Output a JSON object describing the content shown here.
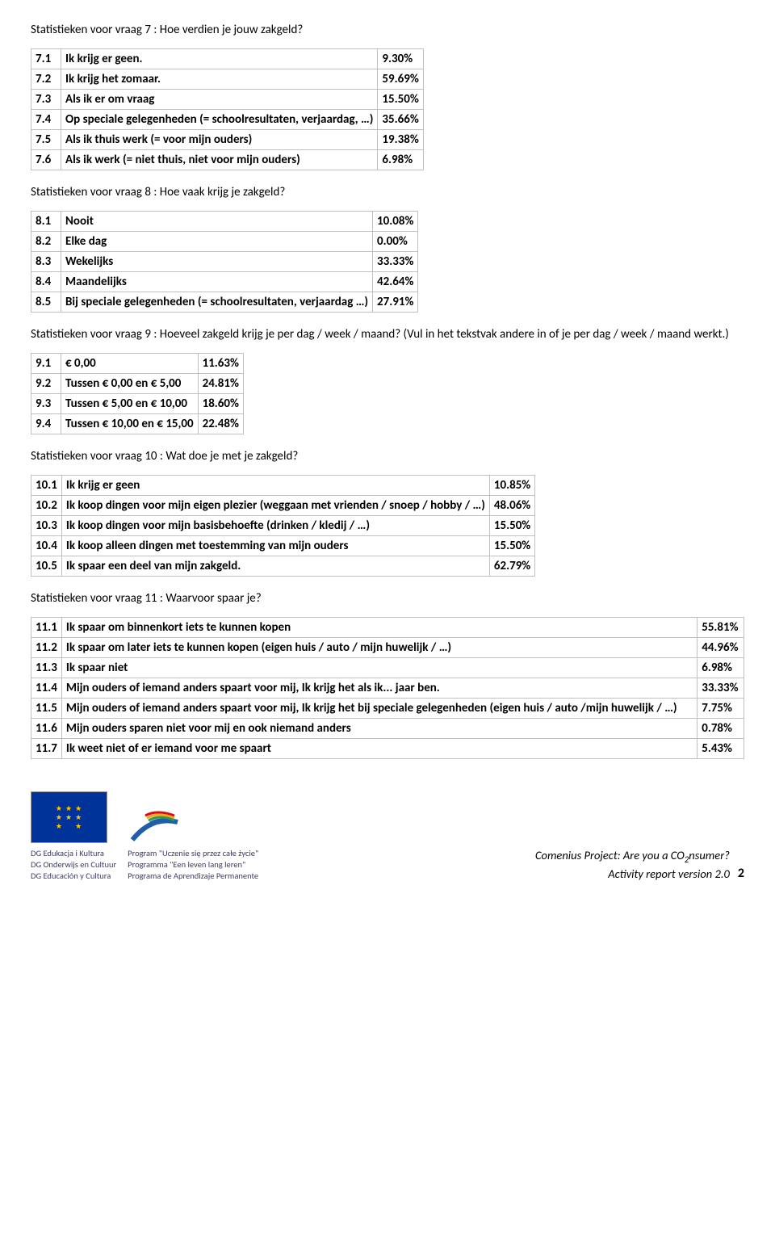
{
  "q7": {
    "title": "Statistieken voor vraag 7 : Hoe verdien je jouw zakgeld?",
    "rows": [
      {
        "id": "7.1",
        "label": "Ik krijg er geen.",
        "pct": "9.30%"
      },
      {
        "id": "7.2",
        "label": "Ik krijg het zomaar.",
        "pct": "59.69%"
      },
      {
        "id": "7.3",
        "label": "Als ik er om vraag",
        "pct": "15.50%"
      },
      {
        "id": "7.4",
        "label": "Op speciale gelegenheden (= schoolresultaten, verjaardag, …)",
        "pct": "35.66%"
      },
      {
        "id": "7.5",
        "label": "Als ik thuis werk (= voor mijn ouders)",
        "pct": "19.38%"
      },
      {
        "id": "7.6",
        "label": "Als ik werk (= niet thuis, niet voor mijn ouders)",
        "pct": "6.98%"
      }
    ]
  },
  "q8": {
    "title": "Statistieken voor vraag 8 : Hoe vaak krijg je zakgeld?",
    "rows": [
      {
        "id": "8.1",
        "label": "Nooit",
        "pct": "10.08%"
      },
      {
        "id": "8.2",
        "label": "Elke dag",
        "pct": "0.00%"
      },
      {
        "id": "8.3",
        "label": "Wekelijks",
        "pct": "33.33%"
      },
      {
        "id": "8.4",
        "label": "Maandelijks",
        "pct": "42.64%"
      },
      {
        "id": "8.5",
        "label": "Bij speciale gelegenheden (= schoolresultaten, verjaardag …)",
        "pct": "27.91%"
      }
    ]
  },
  "q9": {
    "title": "Statistieken voor vraag 9 : Hoeveel zakgeld krijg je per dag / week / maand? (Vul in het tekstvak andere in of je per dag / week / maand werkt.)",
    "rows": [
      {
        "id": "9.1",
        "label": "€ 0,00",
        "pct": "11.63%"
      },
      {
        "id": "9.2",
        "label": "Tussen € 0,00 en € 5,00",
        "pct": "24.81%"
      },
      {
        "id": "9.3",
        "label": "Tussen € 5,00 en € 10,00",
        "pct": "18.60%"
      },
      {
        "id": "9.4",
        "label": "Tussen € 10,00 en € 15,00",
        "pct": "22.48%"
      }
    ]
  },
  "q10": {
    "title": "Statistieken voor vraag 10 : Wat doe je met je zakgeld?",
    "rows": [
      {
        "id": "10.1",
        "label": "Ik krijg er geen",
        "pct": "10.85%"
      },
      {
        "id": "10.2",
        "label": "Ik koop dingen voor mijn eigen plezier (weggaan met vrienden / snoep / hobby / …)",
        "pct": "48.06%"
      },
      {
        "id": "10.3",
        "label": "Ik koop dingen voor mijn basisbehoefte (drinken / kledij / …)",
        "pct": "15.50%"
      },
      {
        "id": "10.4",
        "label": "Ik koop alleen dingen met toestemming van mijn ouders",
        "pct": "15.50%"
      },
      {
        "id": "10.5",
        "label": "Ik spaar een deel van mijn zakgeld.",
        "pct": "62.79%"
      }
    ]
  },
  "q11": {
    "title": "Statistieken voor vraag 11 : Waarvoor spaar je?",
    "rows": [
      {
        "id": "11.1",
        "label": "Ik spaar om binnenkort iets te kunnen kopen",
        "pct": "55.81%"
      },
      {
        "id": "11.2",
        "label": "Ik spaar om later iets te kunnen kopen (eigen huis / auto / mijn huwelijk / …)",
        "pct": "44.96%"
      },
      {
        "id": "11.3",
        "label": "Ik spaar niet",
        "pct": "6.98%"
      },
      {
        "id": "11.4",
        "label": "Mijn ouders of iemand anders spaart voor mij, Ik krijg het als ik... jaar ben.",
        "pct": "33.33%"
      },
      {
        "id": "11.5",
        "label": "Mijn ouders of iemand anders spaart voor mij, Ik krijg het bij speciale gelegenheden (eigen huis / auto /mijn huwelijk / …)",
        "pct": "7.75%"
      },
      {
        "id": "11.6",
        "label": "Mijn ouders sparen niet voor mij en ook niemand anders",
        "pct": "0.78%"
      },
      {
        "id": "11.7",
        "label": "Ik weet niet of er iemand voor me spaart",
        "pct": "5.43%"
      }
    ]
  },
  "footer": {
    "org1": "DG Edukacja i Kultura",
    "org2": "DG Onderwijs en Cultuur",
    "org3": "DG Educación y Cultura",
    "prog1": "Program \"Uczenie się przez całe życie\"",
    "prog2": "Programma \"Een leven lang leren\"",
    "prog3": "Programa de Aprendizaje Permanente",
    "project_line1": "Comenius Project: Are you a CO",
    "project_sub": "2",
    "project_line1b": "nsumer?",
    "project_line2": "Activity report version 2.0",
    "page": "2"
  },
  "style": {
    "table_border": "#c0c0c0",
    "cell_bg": "#ffffff",
    "max_label_width_q11": 790
  }
}
